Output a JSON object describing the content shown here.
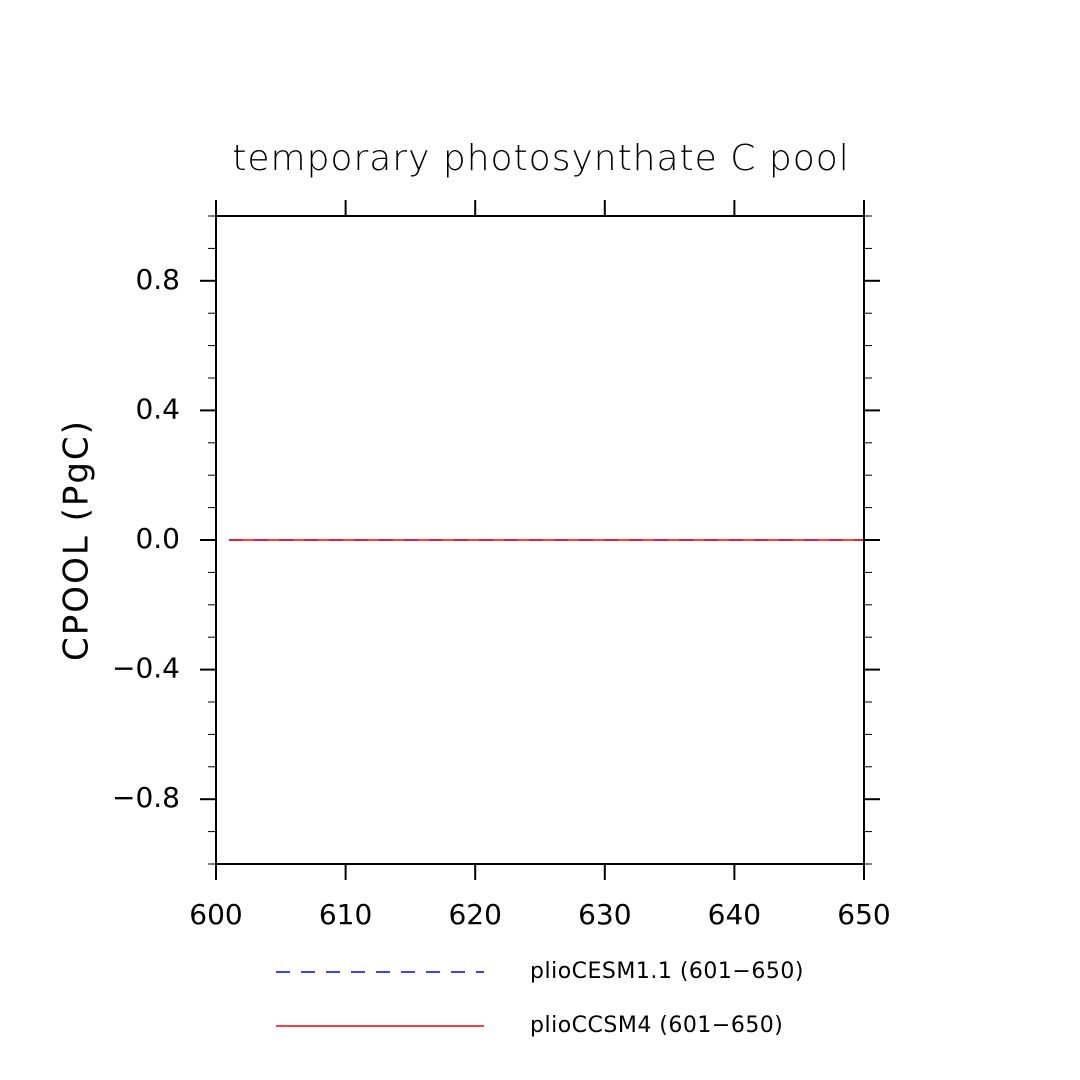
{
  "chart_data": {
    "type": "line",
    "title": "temporary photosynthate C pool",
    "xlabel": "",
    "ylabel": "CPOOL  (PgC)",
    "xlim": [
      600,
      650
    ],
    "ylim": [
      -1.0,
      1.0
    ],
    "xticks": [
      600,
      610,
      620,
      630,
      640,
      650
    ],
    "xtick_labels": [
      "600",
      "610",
      "620",
      "630",
      "640",
      "650"
    ],
    "yticks": [
      -0.8,
      -0.4,
      0.0,
      0.4,
      0.8
    ],
    "ytick_labels": [
      "−0.8",
      "−0.4",
      "0.0",
      "0.4",
      "0.8"
    ],
    "grid": false,
    "legend_position": "bottom",
    "series": [
      {
        "name": "plioCESM1.1 (601−650)",
        "color": "#0000ff",
        "dash": "dashed",
        "x": [
          601,
          650
        ],
        "values": [
          0.0,
          0.0
        ]
      },
      {
        "name": "plioCCSM4 (601−650)",
        "color": "#ff0000",
        "dash": "solid",
        "x": [
          601,
          650
        ],
        "values": [
          0.0,
          0.0
        ]
      }
    ]
  }
}
